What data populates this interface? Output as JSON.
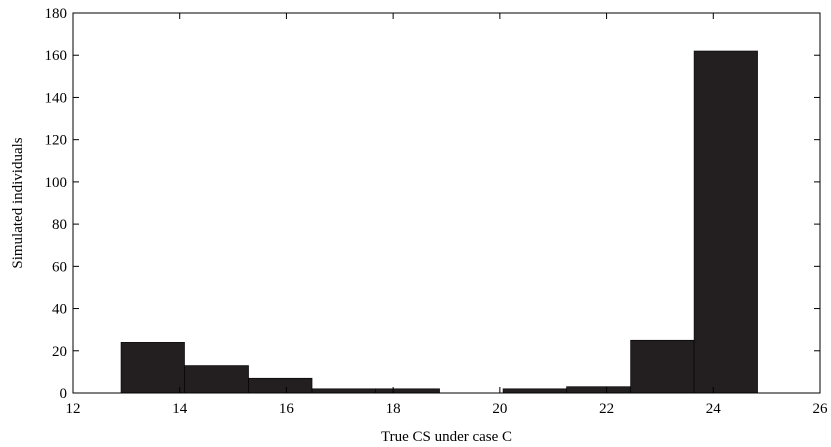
{
  "chart_data": {
    "type": "bar",
    "subtype": "histogram",
    "title": "",
    "xlabel": "True CS under case C",
    "ylabel": "Simulated individuals",
    "xlim": [
      12,
      26
    ],
    "ylim": [
      0,
      180
    ],
    "xticks": [
      12,
      14,
      16,
      18,
      20,
      22,
      24,
      26
    ],
    "yticks": [
      0,
      20,
      40,
      60,
      80,
      100,
      120,
      140,
      160,
      180
    ],
    "bins": [
      {
        "x0": 12.9,
        "x1": 14.09,
        "value": 24
      },
      {
        "x0": 14.09,
        "x1": 15.29,
        "value": 13
      },
      {
        "x0": 15.29,
        "x1": 16.48,
        "value": 7
      },
      {
        "x0": 16.48,
        "x1": 17.67,
        "value": 2
      },
      {
        "x0": 17.67,
        "x1": 18.87,
        "value": 2
      },
      {
        "x0": 18.87,
        "x1": 20.06,
        "value": 0
      },
      {
        "x0": 20.06,
        "x1": 21.25,
        "value": 2
      },
      {
        "x0": 21.25,
        "x1": 22.45,
        "value": 3
      },
      {
        "x0": 22.45,
        "x1": 23.64,
        "value": 25
      },
      {
        "x0": 23.64,
        "x1": 24.83,
        "value": 162
      }
    ],
    "bar_color": "#231f20",
    "grid": false,
    "legend": "none"
  }
}
